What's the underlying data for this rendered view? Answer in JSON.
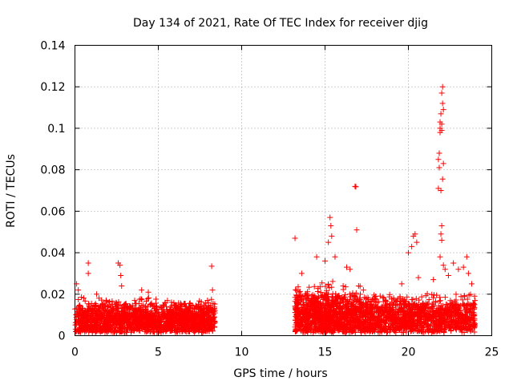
{
  "chart_data": {
    "type": "scatter",
    "title": "Day 134 of 2021, Rate Of TEC Index for receiver djig",
    "xlabel": "GPS time / hours",
    "ylabel": "ROTI / TECUs",
    "xlim": [
      0,
      25
    ],
    "ylim": [
      0,
      0.14
    ],
    "xticks": [
      0,
      5,
      10,
      15,
      20,
      25
    ],
    "yticks": [
      0,
      0.02,
      0.04,
      0.06,
      0.08,
      0.1,
      0.12,
      0.14
    ],
    "xtick_labels": [
      "0",
      "5",
      "10",
      "15",
      "20",
      "25"
    ],
    "ytick_labels": [
      "0",
      "0.02",
      "0.04",
      "0.06",
      "0.08",
      "0.1",
      "0.12",
      "0.14"
    ],
    "grid": true,
    "marker": "+",
    "color": "#ff0000",
    "clusters": [
      {
        "x": [
          0.0,
          8.4
        ],
        "y_base": 0.008,
        "y_spread": 0.006,
        "n": 1800
      },
      {
        "x": [
          13.2,
          17.2
        ],
        "y_base": 0.01,
        "y_spread": 0.009,
        "n": 1100
      },
      {
        "x": [
          17.2,
          24.0
        ],
        "y_base": 0.009,
        "y_spread": 0.007,
        "n": 1300
      }
    ],
    "points": [
      [
        0.1,
        0.025
      ],
      [
        0.2,
        0.022
      ],
      [
        0.8,
        0.035
      ],
      [
        0.8,
        0.03
      ],
      [
        1.3,
        0.02
      ],
      [
        2.6,
        0.035
      ],
      [
        2.7,
        0.034
      ],
      [
        2.75,
        0.029
      ],
      [
        2.8,
        0.024
      ],
      [
        4.0,
        0.022
      ],
      [
        4.4,
        0.021
      ],
      [
        8.2,
        0.0335
      ],
      [
        8.25,
        0.022
      ],
      [
        13.2,
        0.047
      ],
      [
        13.6,
        0.03
      ],
      [
        14.5,
        0.038
      ],
      [
        15.0,
        0.036
      ],
      [
        15.2,
        0.045
      ],
      [
        15.3,
        0.057
      ],
      [
        15.35,
        0.053
      ],
      [
        15.4,
        0.048
      ],
      [
        15.6,
        0.038
      ],
      [
        16.3,
        0.033
      ],
      [
        16.5,
        0.032
      ],
      [
        16.8,
        0.072
      ],
      [
        16.85,
        0.0718
      ],
      [
        16.9,
        0.051
      ],
      [
        17.3,
        0.022
      ],
      [
        19.6,
        0.025
      ],
      [
        20.0,
        0.04
      ],
      [
        20.2,
        0.043
      ],
      [
        20.3,
        0.048
      ],
      [
        20.4,
        0.049
      ],
      [
        20.5,
        0.045
      ],
      [
        20.6,
        0.028
      ],
      [
        21.5,
        0.027
      ],
      [
        21.8,
        0.071
      ],
      [
        21.8,
        0.085
      ],
      [
        21.85,
        0.081
      ],
      [
        21.85,
        0.088
      ],
      [
        21.9,
        0.098
      ],
      [
        21.9,
        0.1
      ],
      [
        21.9,
        0.103
      ],
      [
        21.95,
        0.107
      ],
      [
        21.95,
        0.07
      ],
      [
        22.0,
        0.117
      ],
      [
        22.0,
        0.099
      ],
      [
        22.0,
        0.102
      ],
      [
        22.05,
        0.112
      ],
      [
        22.05,
        0.12
      ],
      [
        22.05,
        0.0755
      ],
      [
        22.1,
        0.109
      ],
      [
        22.1,
        0.083
      ],
      [
        22.0,
        0.053
      ],
      [
        21.95,
        0.049
      ],
      [
        22.0,
        0.046
      ],
      [
        21.9,
        0.038
      ],
      [
        22.1,
        0.034
      ],
      [
        22.2,
        0.032
      ],
      [
        22.4,
        0.029
      ],
      [
        22.7,
        0.035
      ],
      [
        23.0,
        0.032
      ],
      [
        23.3,
        0.033
      ],
      [
        23.5,
        0.038
      ],
      [
        23.6,
        0.03
      ],
      [
        23.8,
        0.025
      ]
    ]
  }
}
